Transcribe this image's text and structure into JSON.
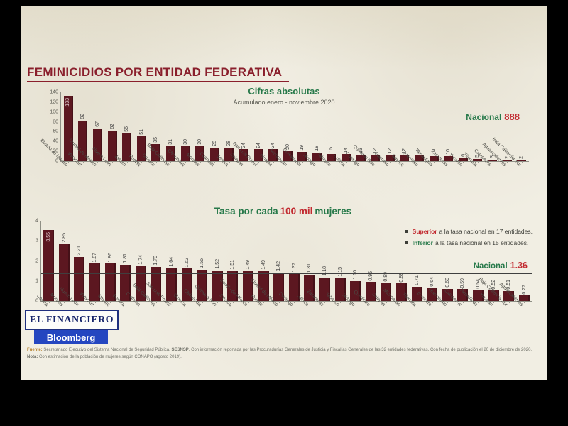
{
  "header": {
    "title": "FEMINICIDIOS POR ENTIDAD FEDERATIVA"
  },
  "colors": {
    "title_maroon": "#8a1f2c",
    "bar_maroon": "#5c1720",
    "accent_green": "#27794a",
    "accent_red": "#c22a30",
    "logo_blue": "#2446c0",
    "slide_background": "#f1eee3"
  },
  "chart_data": [
    {
      "type": "bar",
      "title": "Cifras absolutas",
      "subtitle": "Acumulado enero - noviembre 2020",
      "annotation": {
        "label": "Nacional",
        "value": "888"
      },
      "ylim": [
        0,
        140
      ],
      "yticks": [
        0,
        20,
        40,
        60,
        80,
        100,
        120,
        140
      ],
      "grid": false,
      "categories": [
        "Estado de México",
        "Veracruz",
        "Ciudad de México",
        "Nuevo León",
        "Jalisco",
        "Puebla",
        "Oaxaca",
        "Baja California",
        "Chihuahua",
        "Morelos",
        "Coahuila",
        "Sonora",
        "Chiapas",
        "San Luis Potosí",
        "Sinaloa",
        "Michoacán",
        "Guanajuato",
        "Hidalgo",
        "Tabasco",
        "Colima",
        "Durango",
        "Quintana Roo",
        "Guerrero",
        "Nayarit",
        "Querétaro",
        "Tamaulipas",
        "Zacatecas",
        "Yucatán",
        "Tlaxcala",
        "Campeche",
        "Aguascalientes",
        "Baja California Sur"
      ],
      "values": [
        133,
        82,
        67,
        62,
        56,
        51,
        35,
        31,
        30,
        30,
        28,
        28,
        24,
        24,
        24,
        20,
        19,
        18,
        15,
        14,
        13,
        12,
        12,
        12,
        11,
        10,
        10,
        6,
        5,
        3,
        2,
        2
      ],
      "value_labels": [
        "133",
        "82",
        "67",
        "62",
        "56",
        "51",
        "35",
        "31",
        "30",
        "30",
        "28",
        "28",
        "24",
        "24",
        "24",
        "20",
        "19",
        "18",
        "15",
        "14",
        "13",
        "12",
        "12",
        "12",
        "11",
        "10",
        "10",
        "6",
        "5",
        "3",
        "2",
        "2"
      ]
    },
    {
      "type": "bar",
      "title_parts": [
        "Tasa por cada",
        "100 mil",
        "mujeres"
      ],
      "ylim": [
        0,
        4
      ],
      "yticks": [
        0,
        1,
        2,
        3,
        4
      ],
      "grid": false,
      "reference_line": {
        "value": 1.36,
        "label": "Nacional",
        "value_label": "1.36"
      },
      "categories": [
        "Colima",
        "Morelos",
        "Nuevo León",
        "Veracruz",
        "Nayarit",
        "Sonora",
        "Coahuila",
        "Baja California",
        "San Luis Potosí",
        "Oaxaca",
        "Chihuahua",
        "Quintana Roo",
        "Sinaloa",
        "Estado de México",
        "Puebla",
        "Ciudad de México",
        "Durango",
        "Jalisco",
        "Zacatecas",
        "Tabasco",
        "Hidalgo",
        "Querétaro",
        "Chiapas",
        "Michoacán",
        "Tlaxcala",
        "Guerrero",
        "Guanajuato",
        "Campeche",
        "Tamaulipas",
        "Yucatán",
        "Baja California Sur",
        "Aguascalientes"
      ],
      "values": [
        3.55,
        2.85,
        2.21,
        1.87,
        1.86,
        1.81,
        1.74,
        1.7,
        1.64,
        1.62,
        1.56,
        1.52,
        1.51,
        1.49,
        1.49,
        1.42,
        1.37,
        1.31,
        1.18,
        1.15,
        1.0,
        0.95,
        0.89,
        0.88,
        0.71,
        0.64,
        0.6,
        0.59,
        0.54,
        0.52,
        0.51,
        0.27
      ],
      "value_labels": [
        "3.55",
        "2.85",
        "2.21",
        "1.87",
        "1.86",
        "1.81",
        "1.74",
        "1.70",
        "1.64",
        "1.62",
        "1.56",
        "1.52",
        "1.51",
        "1.49",
        "1.49",
        "1.42",
        "1.37",
        "1.31",
        "1.18",
        "1.15",
        "1.00",
        "0.95",
        "0.89",
        "0.88",
        "0.71",
        "0.64",
        "0.60",
        "0.59",
        "0.54",
        "0.52",
        "0.51",
        "0.27"
      ]
    }
  ],
  "legend": {
    "items": [
      {
        "highlight": "Superior",
        "rest": "a la tasa nacional en 17 entidades.",
        "color": "#c22a30"
      },
      {
        "highlight": "Inferior",
        "rest": "a la tasa nacional en 15 entidades.",
        "color": "#27794a"
      }
    ]
  },
  "logo": {
    "line1": "EL FINANCIERO",
    "line2": "Bloomberg"
  },
  "footer": {
    "parts": [
      {
        "text": "Fuente: ",
        "bold": true,
        "color": "#b5822f"
      },
      {
        "text": "Secretariado Ejecutivo del Sistema Nacional de Seguridad Pública, ",
        "bold": false
      },
      {
        "text": "SESNSP",
        "bold": true
      },
      {
        "text": ". Con información reportada por las Procuradurías Generales de Justicia y Fiscalías Generales de las 32 entidades federativas. Con fecha de publicación el 20 de diciembre de 2020. ",
        "bold": false
      },
      {
        "text": "Nota: ",
        "bold": true
      },
      {
        "text": "Con estimación de la población de mujeres según CONAPO (agosto 2019).",
        "bold": false
      }
    ]
  }
}
